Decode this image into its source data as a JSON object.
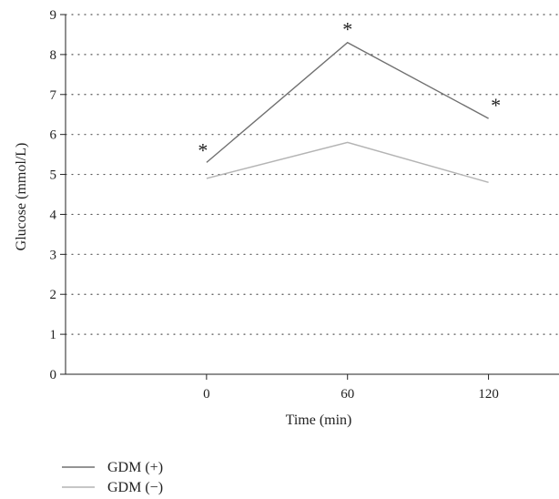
{
  "chart_data": {
    "type": "line",
    "title": "",
    "xlabel": "Time (min)",
    "ylabel": "Glucose (mmol/L)",
    "x": [
      0,
      60,
      120
    ],
    "x_tick_labels": [
      "0",
      "60",
      "120"
    ],
    "xlim": [
      -60,
      150
    ],
    "ylim": [
      0,
      9
    ],
    "y_ticks": [
      0,
      1,
      2,
      3,
      4,
      5,
      6,
      7,
      8,
      9
    ],
    "grid": "horizontal-dotted",
    "legend_position": "bottom-left",
    "series": [
      {
        "name": "GDM (+)",
        "values": [
          5.3,
          8.3,
          6.4
        ],
        "color": "#707070"
      },
      {
        "name": "GDM (−)",
        "values": [
          4.9,
          5.8,
          4.8
        ],
        "color": "#b4b4b4"
      }
    ],
    "annotations": [
      {
        "text": "*",
        "x": 0,
        "y": 5.3
      },
      {
        "text": "*",
        "x": 60,
        "y": 8.3
      },
      {
        "text": "*",
        "x": 120,
        "y": 6.4
      }
    ]
  }
}
